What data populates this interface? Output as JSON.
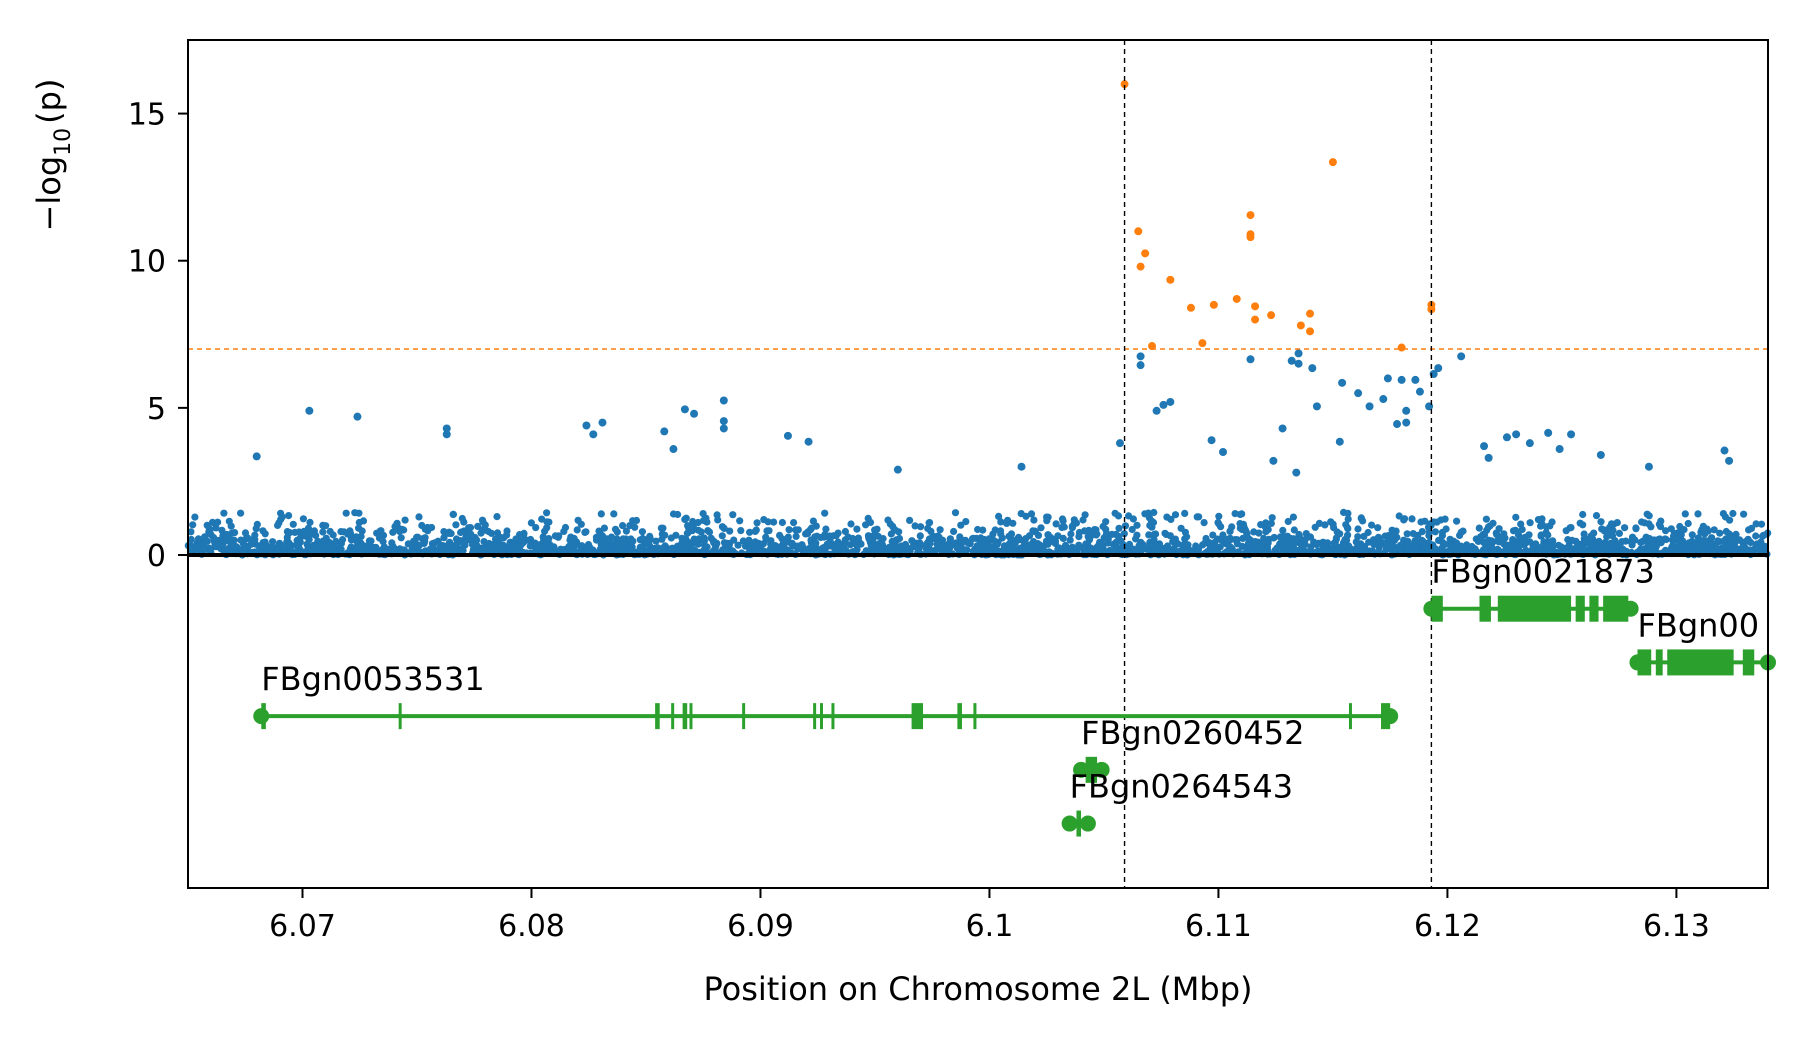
{
  "chart_data": {
    "type": "scatter",
    "title": "",
    "xlabel": "Position on Chromosome 2L (Mbp)",
    "ylabel_main": "−log",
    "ylabel_sub": "10",
    "ylabel_tail": "(p)",
    "xlim": [
      6.065,
      6.134
    ],
    "ylim": [
      0,
      17.5
    ],
    "xticks": [
      6.07,
      6.08,
      6.09,
      6.1,
      6.11,
      6.12,
      6.13
    ],
    "xtick_labels": [
      "6.07",
      "6.08",
      "6.09",
      "6.1",
      "6.11",
      "6.12",
      "6.13"
    ],
    "yticks": [
      0,
      5,
      10,
      15
    ],
    "ytick_labels": [
      "0",
      "5",
      "10",
      "15"
    ],
    "threshold": 7,
    "vlines": [
      6.1059,
      6.1193
    ],
    "colors": {
      "background": "#b0d2ee",
      "significant": "#ff7f0e",
      "gene": "#2ca02c",
      "threshold": "#ff7f0e",
      "axis": "#000000"
    },
    "significant_points": [
      [
        6.1059,
        16.0
      ],
      [
        6.1065,
        11.0
      ],
      [
        6.1066,
        9.8
      ],
      [
        6.1068,
        10.25
      ],
      [
        6.1071,
        7.1
      ],
      [
        6.1079,
        9.35
      ],
      [
        6.1088,
        8.4
      ],
      [
        6.1093,
        7.2
      ],
      [
        6.1098,
        8.5
      ],
      [
        6.1108,
        8.7
      ],
      [
        6.1114,
        11.55
      ],
      [
        6.1114,
        10.9
      ],
      [
        6.1114,
        10.8
      ],
      [
        6.1116,
        8.45
      ],
      [
        6.1116,
        8.0
      ],
      [
        6.1123,
        8.15
      ],
      [
        6.1136,
        7.8
      ],
      [
        6.114,
        8.2
      ],
      [
        6.114,
        7.6
      ],
      [
        6.115,
        13.35
      ],
      [
        6.118,
        7.05
      ],
      [
        6.1193,
        8.5
      ],
      [
        6.1193,
        8.35
      ]
    ],
    "peak_points": [
      [
        6.0703,
        4.9
      ],
      [
        6.0724,
        4.7
      ],
      [
        6.0763,
        4.3
      ],
      [
        6.0763,
        4.1
      ],
      [
        6.0867,
        4.95
      ],
      [
        6.0871,
        4.8
      ],
      [
        6.0884,
        5.25
      ],
      [
        6.0884,
        4.55
      ],
      [
        6.0884,
        4.3
      ],
      [
        6.0824,
        4.4
      ],
      [
        6.0827,
        4.1
      ],
      [
        6.0831,
        4.5
      ],
      [
        6.0858,
        4.2
      ],
      [
        6.0862,
        3.6
      ],
      [
        6.068,
        3.35
      ],
      [
        6.1066,
        6.75
      ],
      [
        6.1066,
        6.45
      ],
      [
        6.1076,
        5.1
      ],
      [
        6.1079,
        5.2
      ],
      [
        6.1073,
        4.9
      ],
      [
        6.1114,
        6.65
      ],
      [
        6.1132,
        6.6
      ],
      [
        6.1135,
        6.5
      ],
      [
        6.1135,
        6.85
      ],
      [
        6.1141,
        6.35
      ],
      [
        6.1143,
        5.05
      ],
      [
        6.1154,
        5.85
      ],
      [
        6.1161,
        5.5
      ],
      [
        6.1166,
        5.05
      ],
      [
        6.1172,
        5.3
      ],
      [
        6.1174,
        6.0
      ],
      [
        6.1178,
        4.45
      ],
      [
        6.118,
        5.95
      ],
      [
        6.1182,
        4.9
      ],
      [
        6.1182,
        4.5
      ],
      [
        6.1186,
        5.95
      ],
      [
        6.1188,
        5.55
      ],
      [
        6.1192,
        5.05
      ],
      [
        6.1194,
        6.15
      ],
      [
        6.1196,
        6.35
      ],
      [
        6.1206,
        6.75
      ],
      [
        6.1097,
        3.9
      ],
      [
        6.1128,
        4.3
      ],
      [
        6.1153,
        3.85
      ],
      [
        6.1102,
        3.5
      ],
      [
        6.1124,
        3.2
      ],
      [
        6.1134,
        2.8
      ],
      [
        6.1057,
        3.8
      ],
      [
        6.1014,
        3.0
      ],
      [
        6.0921,
        3.85
      ],
      [
        6.0912,
        4.05
      ],
      [
        6.096,
        2.9
      ],
      [
        6.1226,
        4.0
      ],
      [
        6.123,
        4.1
      ],
      [
        6.1236,
        3.8
      ],
      [
        6.1244,
        4.15
      ],
      [
        6.1249,
        3.6
      ],
      [
        6.1254,
        4.1
      ],
      [
        6.1216,
        3.7
      ],
      [
        6.1267,
        3.4
      ],
      [
        6.1288,
        3.0
      ],
      [
        6.1321,
        3.55
      ],
      [
        6.1323,
        3.2
      ],
      [
        6.1218,
        3.3
      ]
    ],
    "gene_tracks": [
      {
        "label": "FBgn0021873",
        "start": 6.1193,
        "end": 6.128,
        "row": 1,
        "exons": [
          [
            6.1193,
            6.1198
          ],
          [
            6.1214,
            6.1219
          ],
          [
            6.1222,
            6.1254
          ],
          [
            6.1256,
            6.126
          ],
          [
            6.1262,
            6.1266
          ],
          [
            6.1268,
            6.1279
          ]
        ]
      },
      {
        "label": "FBgn00",
        "start": 6.1283,
        "end": 6.134,
        "row": 2,
        "exons": [
          [
            6.1283,
            6.1289
          ],
          [
            6.1291,
            6.1294
          ],
          [
            6.1296,
            6.1325
          ],
          [
            6.1329,
            6.1334
          ]
        ]
      },
      {
        "label": "FBgn0053531",
        "start": 6.0682,
        "end": 6.1175,
        "row": 3,
        "exons": [
          [
            6.0682,
            6.0684
          ],
          [
            6.0742,
            6.0743
          ],
          [
            6.0854,
            6.0856
          ],
          [
            6.0861,
            6.0862
          ],
          [
            6.0866,
            6.0868
          ],
          [
            6.0869,
            6.087
          ],
          [
            6.0892,
            6.0893
          ],
          [
            6.0923,
            6.0924
          ],
          [
            6.0926,
            6.0927
          ],
          [
            6.0931,
            6.0932
          ],
          [
            6.0966,
            6.0971
          ],
          [
            6.0986,
            6.0988
          ],
          [
            6.0993,
            6.0994
          ],
          [
            6.1157,
            6.1158
          ],
          [
            6.1171,
            6.1175
          ]
        ]
      },
      {
        "label": "FBgn0260452",
        "start": 6.104,
        "end": 6.1049,
        "row": 4,
        "exons": [
          [
            6.1042,
            6.1047
          ]
        ]
      },
      {
        "label": "FBgn0264543",
        "start": 6.1035,
        "end": 6.1043,
        "row": 5,
        "exons": [
          [
            6.1038,
            6.104
          ]
        ]
      }
    ]
  }
}
